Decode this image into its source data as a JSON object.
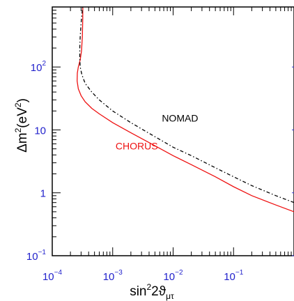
{
  "chart_data": {
    "type": "line",
    "xscale": "log",
    "yscale": "log",
    "xlim": [
      0.0001,
      1
    ],
    "ylim": [
      0.1,
      900
    ],
    "grid": false,
    "xlabel": {
      "main": "sin",
      "sup": "2",
      "rest": "2ϑ",
      "sub": "μτ"
    },
    "ylabel": {
      "prefix": "Δm",
      "sup1": "2",
      "mid": "(eV",
      "sup2": "2",
      "suffix": ")"
    },
    "x_ticks": [
      {
        "value": 0.0001,
        "base": "10",
        "exp": "−4"
      },
      {
        "value": 0.001,
        "base": "10",
        "exp": "−3"
      },
      {
        "value": 0.01,
        "base": "10",
        "exp": "−2"
      },
      {
        "value": 0.1,
        "base": "10",
        "exp": "−1"
      }
    ],
    "y_ticks": [
      {
        "value": 0.1,
        "base": "10",
        "exp": "−1"
      },
      {
        "value": 1,
        "text": "1"
      },
      {
        "value": 10,
        "text": "10"
      },
      {
        "value": 100,
        "base": "10",
        "exp": "2"
      }
    ],
    "series": [
      {
        "name": "CHORUS",
        "color": "#ee1111",
        "style": "solid",
        "points": [
          [
            0.00032,
            900
          ],
          [
            0.00032,
            600
          ],
          [
            0.000315,
            300
          ],
          [
            0.000305,
            180
          ],
          [
            0.00029,
            130
          ],
          [
            0.00027,
            100
          ],
          [
            0.00026,
            80
          ],
          [
            0.000258,
            60
          ],
          [
            0.00027,
            45
          ],
          [
            0.0003,
            35
          ],
          [
            0.00035,
            28
          ],
          [
            0.00045,
            22
          ],
          [
            0.0006,
            18
          ],
          [
            0.001,
            13
          ],
          [
            0.002,
            9
          ],
          [
            0.005,
            5.6
          ],
          [
            0.01,
            3.9
          ],
          [
            0.02,
            2.8
          ],
          [
            0.05,
            1.8
          ],
          [
            0.1,
            1.25
          ],
          [
            0.2,
            0.9
          ],
          [
            0.5,
            0.64
          ],
          [
            1,
            0.5
          ]
        ]
      },
      {
        "name": "NOMAD",
        "color": "#000000",
        "style": "dash-dot",
        "points": [
          [
            0.00032,
            900
          ],
          [
            0.00031,
            700
          ],
          [
            0.0003,
            500
          ],
          [
            0.00029,
            300
          ],
          [
            0.000285,
            200
          ],
          [
            0.000285,
            140
          ],
          [
            0.00029,
            100
          ],
          [
            0.00031,
            75
          ],
          [
            0.00035,
            55
          ],
          [
            0.00045,
            40
          ],
          [
            0.0006,
            30
          ],
          [
            0.001,
            20
          ],
          [
            0.002,
            13
          ],
          [
            0.005,
            7.8
          ],
          [
            0.01,
            5.3
          ],
          [
            0.02,
            3.9
          ],
          [
            0.05,
            2.5
          ],
          [
            0.1,
            1.8
          ],
          [
            0.2,
            1.3
          ],
          [
            0.5,
            0.9
          ],
          [
            1,
            0.7
          ]
        ]
      }
    ],
    "labels": [
      {
        "text": "NOMAD",
        "color": "#000000",
        "at": [
          0.013,
          13.5
        ]
      },
      {
        "text": "CHORUS",
        "color": "#ee1111",
        "at": [
          0.0025,
          4.9
        ]
      }
    ]
  }
}
